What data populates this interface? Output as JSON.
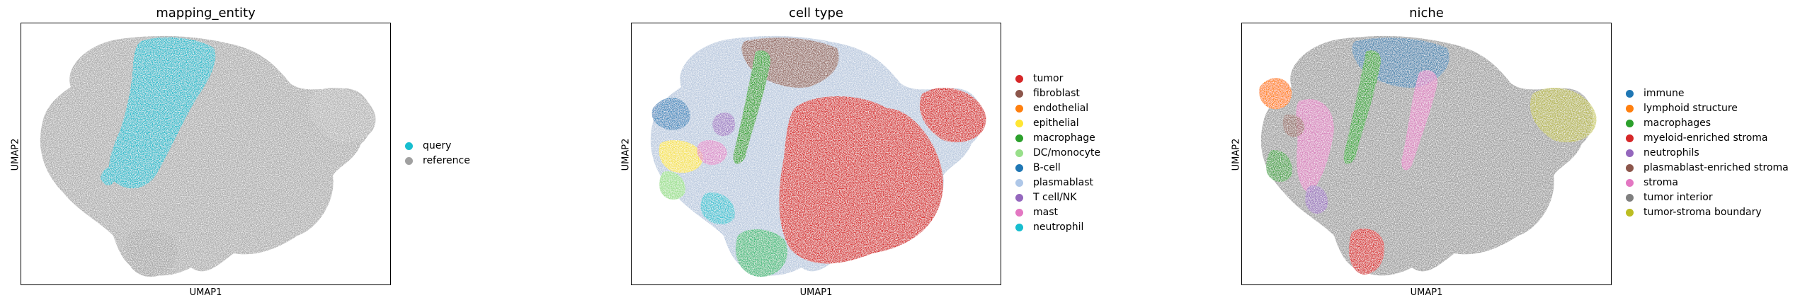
{
  "chart_data": [
    {
      "type": "scatter",
      "title": "mapping_entity",
      "xlabel": "UMAP1",
      "ylabel": "UMAP2",
      "grid": false,
      "legend_placement": "right",
      "legend": [
        {
          "name": "query",
          "color": "#17becf"
        },
        {
          "name": "reference",
          "color": "#a0a0a0"
        }
      ]
    },
    {
      "type": "scatter",
      "title": "cell type",
      "xlabel": "UMAP1",
      "ylabel": "UMAP2",
      "grid": false,
      "legend_placement": "right",
      "legend": [
        {
          "name": "tumor",
          "color": "#d62728"
        },
        {
          "name": "fibroblast",
          "color": "#8c564b"
        },
        {
          "name": "endothelial",
          "color": "#ff7f0e"
        },
        {
          "name": "epithelial",
          "color": "#ffe633"
        },
        {
          "name": "macrophage",
          "color": "#2ca02c"
        },
        {
          "name": "DC/monocyte",
          "color": "#98df8a"
        },
        {
          "name": "B-cell",
          "color": "#1f77b4"
        },
        {
          "name": "plasmablast",
          "color": "#aec7e8"
        },
        {
          "name": "T cell/NK",
          "color": "#9467bd"
        },
        {
          "name": "mast",
          "color": "#e377c2"
        },
        {
          "name": "neutrophil",
          "color": "#17becf"
        }
      ]
    },
    {
      "type": "scatter",
      "title": "niche",
      "xlabel": "UMAP1",
      "ylabel": "UMAP2",
      "grid": false,
      "legend_placement": "right",
      "legend": [
        {
          "name": "immune",
          "color": "#1f77b4"
        },
        {
          "name": "lymphoid structure",
          "color": "#ff7f0e"
        },
        {
          "name": "macrophages",
          "color": "#2ca02c"
        },
        {
          "name": "myeloid-enriched stroma",
          "color": "#d62728"
        },
        {
          "name": "neutrophils",
          "color": "#9467bd"
        },
        {
          "name": "plasmablast-enriched stroma",
          "color": "#8c564b"
        },
        {
          "name": "stroma",
          "color": "#e377c2"
        },
        {
          "name": "tumor interior",
          "color": "#7f7f7f"
        },
        {
          "name": "tumor-stroma boundary",
          "color": "#bcbd22"
        }
      ]
    }
  ]
}
